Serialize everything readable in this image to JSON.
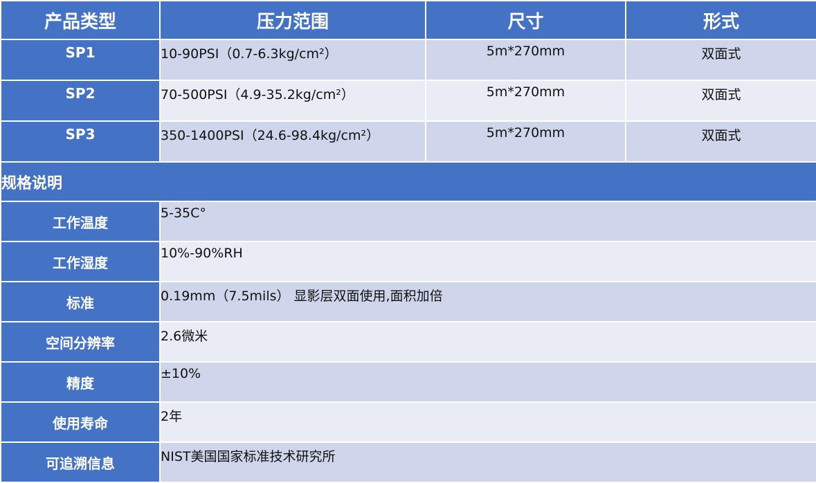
{
  "header": [
    "产品类型",
    "压力范围",
    "尺寸",
    "形式"
  ],
  "products": [
    {
      "type": "SP1",
      "pressure": "10-90PSI（0.7-6.3kg/cm²）",
      "size": "5m*270mm",
      "form": "双面式"
    },
    {
      "type": "SP2",
      "pressure": "70-500PSI（4.9-35.2kg/cm²）",
      "size": "5m*270mm",
      "form": "双面式"
    },
    {
      "type": "SP3",
      "pressure": "350-1400PSI（24.6-98.4kg/cm²）",
      "size": "5m*270mm",
      "form": "双面式"
    }
  ],
  "section_title": "规格说明",
  "specs": [
    {
      "label": "工作温度",
      "value": "5-35C°"
    },
    {
      "label": "工作湿度",
      "value": "10%-90%RH"
    },
    {
      "label": "标准",
      "value": "0.19mm（7.5mils） 显影层双面使用,面积加倍"
    },
    {
      "label": "空间分辨率",
      "value": "2.6微米"
    },
    {
      "label": "精度",
      "value": "±10%"
    },
    {
      "label": "使用寿命",
      "value": "2年"
    },
    {
      "label": "可追溯信息",
      "value": "NIST美国国家标准技术研究所"
    }
  ],
  "colors": {
    "header": "#4472C4",
    "row_dark": "#CFD5EA",
    "row_light": "#E9EBF5"
  }
}
